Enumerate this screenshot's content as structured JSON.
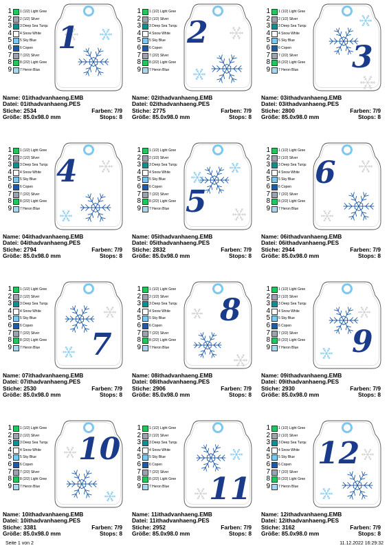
{
  "colors": [
    {
      "num": "1",
      "label": "1 (1/2) Light Gree",
      "hex": "#22c55e"
    },
    {
      "num": "2",
      "label": "2 (1/2) Silver",
      "hex": "#9ca3af"
    },
    {
      "num": "3",
      "label": "3 Deep Sea Turqu",
      "hex": "#0f8f8f"
    },
    {
      "num": "4",
      "label": "4 Snow White",
      "hex": "#ffffff"
    },
    {
      "num": "5",
      "label": "5 Sky Blue",
      "hex": "#7ec8f0"
    },
    {
      "num": "6",
      "label": "6 Copen",
      "hex": "#1e5aa8"
    },
    {
      "num": "7",
      "label": "7 (2/2) Silver",
      "hex": "#9ca3af"
    },
    {
      "num": "8",
      "label": "8 (2/2) Light Gree",
      "hex": "#22c55e"
    },
    {
      "num": "9",
      "label": "7 Heron Blue",
      "hex": "#a8d8f0"
    }
  ],
  "info_labels": {
    "name": "Name:",
    "datei": "Datei:",
    "stiche": "Stiche:",
    "farben": "Farben:",
    "groesse": "Größe:",
    "stops": "Stops:"
  },
  "designs": [
    {
      "numeral": "1",
      "name": "01ithadvanhaeng.EMB",
      "file": "01ithadvanhaeng.PES",
      "stitches": "2534",
      "colors": "7/9",
      "size": "85.0x98.0 mm",
      "stops": "8"
    },
    {
      "numeral": "2",
      "name": "02ithadvanhaeng.EMB",
      "file": "02ithadvanhaeng.PES",
      "stitches": "2775",
      "colors": "7/9",
      "size": "85.0x98.0 mm",
      "stops": "8"
    },
    {
      "numeral": "3",
      "name": "03ithadvanhaeng.EMB",
      "file": "03ithadvanhaeng.PES",
      "stitches": "2800",
      "colors": "7/9",
      "size": "85.0x98.0 mm",
      "stops": "8"
    },
    {
      "numeral": "4",
      "name": "04ithadvanhaeng.EMB",
      "file": "04ithadvanhaeng.PES",
      "stitches": "2794",
      "colors": "7/9",
      "size": "85.0x98.0 mm",
      "stops": "8"
    },
    {
      "numeral": "5",
      "name": "05ithadvanhaeng.EMB",
      "file": "05ithadvanhaeng.PES",
      "stitches": "2832",
      "colors": "7/9",
      "size": "85.0x98.0 mm",
      "stops": "8"
    },
    {
      "numeral": "6",
      "name": "06ithadvanhaeng.EMB",
      "file": "06ithadvanhaeng.PES",
      "stitches": "2944",
      "colors": "7/9",
      "size": "85.0x98.0 mm",
      "stops": "8"
    },
    {
      "numeral": "7",
      "name": "07ithadvanhaeng.EMB",
      "file": "07ithadvanhaeng.PES",
      "stitches": "2530",
      "colors": "7/9",
      "size": "85.0x98.0 mm",
      "stops": "8"
    },
    {
      "numeral": "8",
      "name": "08ithadvanhaeng.EMB",
      "file": "08ithadvanhaeng.PES",
      "stitches": "2906",
      "colors": "7/9",
      "size": "85.0x98.0 mm",
      "stops": "8"
    },
    {
      "numeral": "9",
      "name": "09ithadvanhaeng.EMB",
      "file": "09ithadvanhaeng.PES",
      "stitches": "2930",
      "colors": "7/9",
      "size": "85.0x98.0 mm",
      "stops": "8"
    },
    {
      "numeral": "10",
      "name": "10ithadvanhaeng.EMB",
      "file": "10ithadvanhaeng.PES",
      "stitches": "3381",
      "colors": "7/9",
      "size": "85.0x98.0 mm",
      "stops": "8"
    },
    {
      "numeral": "11",
      "name": "11ithadvanhaeng.EMB",
      "file": "11ithadvanhaeng.PES",
      "stitches": "2952",
      "colors": "7/9",
      "size": "85.0x98.0 mm",
      "stops": "8"
    },
    {
      "numeral": "12",
      "name": "12ithadvanhaeng.EMB",
      "file": "12ithadvanhaeng.PES",
      "stitches": "3162",
      "colors": "7/9",
      "size": "85.0x98.0 mm",
      "stops": "8"
    }
  ],
  "footer": {
    "page": "Seite 1 von 2",
    "datetime": "11.12.2022 16:29:32"
  }
}
